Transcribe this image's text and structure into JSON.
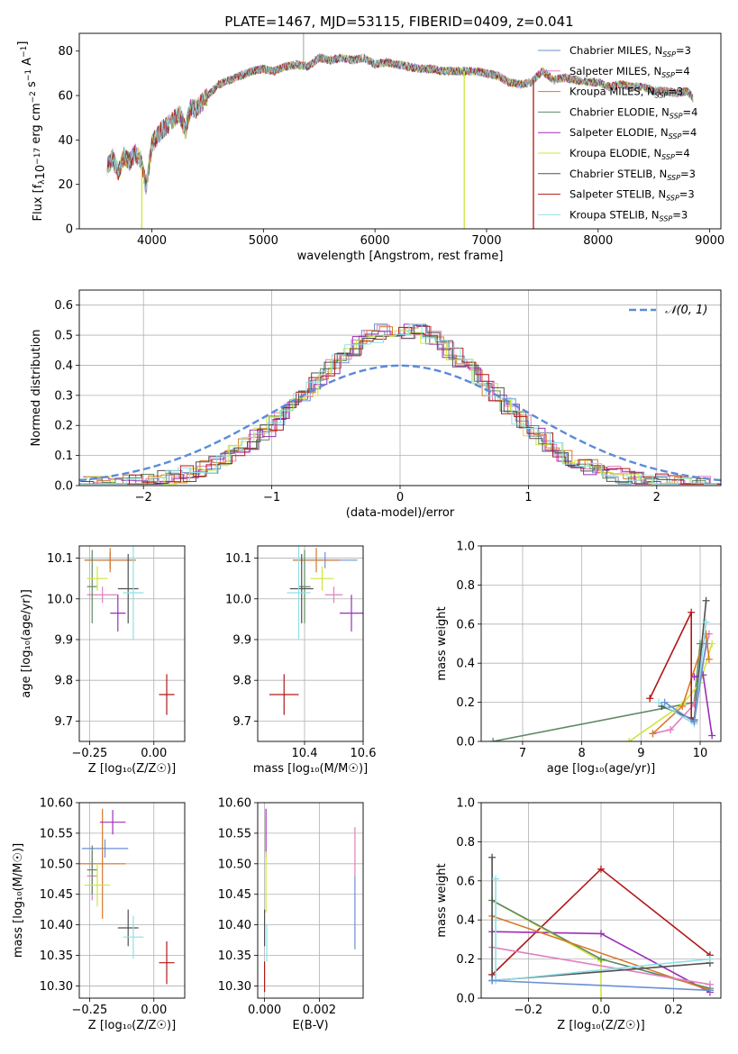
{
  "figure_title": "PLATE=1467, MJD=53115, FIBERID=0409, z=0.041",
  "colors": {
    "Chabrier MILES": "#6b8fd6",
    "Salpeter MILES": "#e07fbf",
    "Kroupa MILES": "#d9782a",
    "Chabrier ELODIE": "#5e8a62",
    "Salpeter ELODIE": "#9b2fb5",
    "Kroupa ELODIE": "#cde63a",
    "Chabrier STELIB": "#505050",
    "Salpeter STELIB": "#b01818",
    "Kroupa STELIB": "#8ee0e6"
  },
  "chart_data": [
    {
      "id": "spectrum",
      "type": "line",
      "xlabel": "wavelength [Angstrom, rest frame]",
      "ylabel": "Flux [f$_\\lambda$10$^{-17}$ erg cm$^{-2}$ s$^{-1}$ A$^{-1}$]",
      "xlim": [
        3350,
        9100
      ],
      "ylim": [
        0,
        88
      ],
      "xticks": [
        4000,
        5000,
        6000,
        7000,
        8000,
        9000
      ],
      "yticks": [
        0,
        20,
        40,
        60,
        80
      ],
      "x": [
        3600,
        3650,
        3700,
        3750,
        3800,
        3850,
        3900,
        3950,
        4000,
        4050,
        4100,
        4150,
        4200,
        4250,
        4300,
        4350,
        4400,
        4500,
        4600,
        4700,
        4800,
        4900,
        5000,
        5100,
        5200,
        5300,
        5400,
        5500,
        5600,
        5700,
        5800,
        5900,
        6000,
        6100,
        6200,
        6300,
        6400,
        6500,
        6600,
        6700,
        6800,
        6900,
        7000,
        7100,
        7200,
        7300,
        7400,
        7500,
        7600,
        7700,
        7800,
        7900,
        8000,
        8100,
        8200,
        8300,
        8400,
        8500,
        8600,
        8700,
        8800,
        8850
      ],
      "y": [
        28,
        32,
        25,
        33,
        30,
        34,
        31,
        19,
        38,
        42,
        45,
        47,
        50,
        52,
        44,
        55,
        54,
        60,
        65,
        67,
        69,
        71,
        72,
        71,
        73,
        74,
        73,
        77,
        76,
        77,
        76,
        77,
        74,
        75,
        74,
        73,
        72,
        72,
        71,
        71,
        71,
        71,
        70,
        69,
        66,
        65,
        66,
        71,
        67,
        68,
        67,
        66,
        66,
        64,
        65,
        64,
        64,
        62,
        62,
        61,
        62,
        59
      ],
      "legend_entries": [
        {
          "name": "Chabrier MILES",
          "nssp": "3"
        },
        {
          "name": "Salpeter MILES",
          "nssp": "4"
        },
        {
          "name": "Kroupa MILES",
          "nssp": "3"
        },
        {
          "name": "Chabrier ELODIE",
          "nssp": "4"
        },
        {
          "name": "Salpeter ELODIE",
          "nssp": "4"
        },
        {
          "name": "Kroupa ELODIE",
          "nssp": "4"
        },
        {
          "name": "Chabrier STELIB",
          "nssp": "3"
        },
        {
          "name": "Salpeter STELIB",
          "nssp": "3"
        },
        {
          "name": "Kroupa STELIB",
          "nssp": "3"
        }
      ],
      "legend_nssp_label": "N",
      "legend_nssp_sub": "SSP",
      "dropouts": [
        {
          "model": "Kroupa ELODIE",
          "x": 3910
        },
        {
          "model": "Kroupa ELODIE",
          "x": 6800
        },
        {
          "model": "Salpeter STELIB",
          "x": 7420
        }
      ],
      "legend": "upper right"
    },
    {
      "id": "residuals",
      "type": "histogram",
      "xlabel": "(data-model)/error",
      "ylabel": "Normed distribution",
      "xlim": [
        -2.5,
        2.5
      ],
      "ylim": [
        0,
        0.65
      ],
      "xticks": [
        -2,
        -1,
        0,
        1,
        2
      ],
      "yticks": [
        0.0,
        0.1,
        0.2,
        0.3,
        0.4,
        0.5,
        0.6
      ],
      "xtick_labels": [
        "−2",
        "−1",
        "0",
        "1",
        "2"
      ],
      "ytick_labels": [
        "0.0",
        "0.1",
        "0.2",
        "0.3",
        "0.4",
        "0.5",
        "0.6"
      ],
      "bin_width": 0.1,
      "bin_start": -2.5,
      "series": [
        {
          "model": "Chabrier MILES",
          "shift": 0.0
        },
        {
          "model": "Salpeter MILES",
          "shift": 0.02
        },
        {
          "model": "Kroupa MILES",
          "shift": 0.04
        },
        {
          "model": "Chabrier ELODIE",
          "shift": -0.02
        },
        {
          "model": "Salpeter ELODIE",
          "shift": 0.03
        },
        {
          "model": "Kroupa ELODIE",
          "shift": -0.04
        },
        {
          "model": "Chabrier STELIB",
          "shift": 0.01
        },
        {
          "model": "Salpeter STELIB",
          "shift": -0.01
        },
        {
          "model": "Kroupa STELIB",
          "shift": -0.03
        }
      ],
      "gaussian_label": "𝒩(0, 1)",
      "gaussian_color": "#5b8bd9",
      "grid": true,
      "legend": "upper right"
    },
    {
      "id": "age_vs_Z",
      "type": "scatter",
      "xlabel": "Z [log₁₀(Z/Z☉)]",
      "ylabel": "age  [log₁₀(age/yr)]",
      "xlim": [
        -0.29,
        0.12
      ],
      "ylim": [
        9.65,
        10.13
      ],
      "xticks": [
        -0.25,
        0.0
      ],
      "xtick_labels": [
        "−0.25",
        "0.00"
      ],
      "yticks": [
        9.7,
        9.8,
        9.9,
        10.0,
        10.1
      ],
      "ytick_labels": [
        "9.7",
        "9.8",
        "9.9",
        "10.0",
        "10.1"
      ],
      "points": [
        {
          "model": "Chabrier MILES",
          "x": -0.17,
          "xerr": 0.1,
          "y": 10.095,
          "yerr": 0.02
        },
        {
          "model": "Salpeter MILES",
          "x": -0.2,
          "xerr": 0.06,
          "y": 10.01,
          "yerr": 0.02
        },
        {
          "model": "Kroupa MILES",
          "x": -0.17,
          "xerr": 0.1,
          "y": 10.095,
          "yerr": 0.03
        },
        {
          "model": "Chabrier ELODIE",
          "x": -0.24,
          "xerr": 0.02,
          "y": 10.03,
          "yerr": 0.09
        },
        {
          "model": "Salpeter ELODIE",
          "x": -0.14,
          "xerr": 0.03,
          "y": 9.965,
          "yerr": 0.045
        },
        {
          "model": "Kroupa ELODIE",
          "x": -0.22,
          "xerr": 0.04,
          "y": 10.05,
          "yerr": 0.03
        },
        {
          "model": "Chabrier STELIB",
          "x": -0.1,
          "xerr": 0.04,
          "y": 10.025,
          "yerr": 0.085
        },
        {
          "model": "Salpeter STELIB",
          "x": 0.05,
          "xerr": 0.03,
          "y": 9.765,
          "yerr": 0.05
        },
        {
          "model": "Kroupa STELIB",
          "x": -0.08,
          "xerr": 0.04,
          "y": 10.015,
          "yerr": 0.115
        }
      ],
      "grid": true
    },
    {
      "id": "age_vs_mass",
      "type": "scatter",
      "xlabel": "mass [log₁₀(M/M☉)]",
      "ylabel": "",
      "xlim": [
        10.24,
        10.6
      ],
      "ylim": [
        9.65,
        10.13
      ],
      "xticks": [
        10.4,
        10.6
      ],
      "xtick_labels": [
        "10.4",
        "10.6"
      ],
      "yticks": [
        9.7,
        9.8,
        9.9,
        10.0,
        10.1
      ],
      "ytick_labels": [
        "9.7",
        "9.8",
        "9.9",
        "10.0",
        "10.1"
      ],
      "points": [
        {
          "model": "Chabrier MILES",
          "x": 10.47,
          "xerr": 0.11,
          "y": 10.095,
          "yerr": 0.02
        },
        {
          "model": "Salpeter MILES",
          "x": 10.5,
          "xerr": 0.03,
          "y": 10.01,
          "yerr": 0.02
        },
        {
          "model": "Kroupa MILES",
          "x": 10.44,
          "xerr": 0.08,
          "y": 10.095,
          "yerr": 0.03
        },
        {
          "model": "Chabrier ELODIE",
          "x": 10.4,
          "xerr": 0.02,
          "y": 10.03,
          "yerr": 0.09
        },
        {
          "model": "Salpeter ELODIE",
          "x": 10.56,
          "xerr": 0.04,
          "y": 9.965,
          "yerr": 0.045
        },
        {
          "model": "Kroupa ELODIE",
          "x": 10.46,
          "xerr": 0.04,
          "y": 10.05,
          "yerr": 0.03
        },
        {
          "model": "Chabrier STELIB",
          "x": 10.39,
          "xerr": 0.04,
          "y": 10.025,
          "yerr": 0.085
        },
        {
          "model": "Salpeter STELIB",
          "x": 10.33,
          "xerr": 0.05,
          "y": 9.765,
          "yerr": 0.05
        },
        {
          "model": "Kroupa STELIB",
          "x": 10.38,
          "xerr": 0.04,
          "y": 10.015,
          "yerr": 0.115
        }
      ],
      "grid": true
    },
    {
      "id": "weight_vs_age",
      "type": "line",
      "xlabel": "age  [log₁₀(age/yr)]",
      "ylabel": "mass weight",
      "xlim": [
        6.3,
        10.35
      ],
      "ylim": [
        0,
        1
      ],
      "xticks": [
        7,
        8,
        9,
        10
      ],
      "xtick_labels": [
        "7",
        "8",
        "9",
        "10"
      ],
      "yticks": [
        0.0,
        0.2,
        0.4,
        0.6,
        0.8,
        1.0
      ],
      "ytick_labels": [
        "0.0",
        "0.2",
        "0.4",
        "0.6",
        "0.8",
        "1.0"
      ],
      "series": [
        {
          "model": "Chabrier ELODIE",
          "x": [
            6.5,
            9.9,
            10.0
          ],
          "y": [
            0.0,
            0.2,
            0.5
          ]
        },
        {
          "model": "Kroupa ELODIE",
          "x": [
            8.8,
            9.7,
            10.0,
            10.2
          ],
          "y": [
            0.0,
            0.19,
            0.3,
            0.5
          ]
        },
        {
          "model": "Salpeter MILES",
          "x": [
            9.2,
            9.5,
            9.9,
            10.15
          ],
          "y": [
            0.04,
            0.06,
            0.19,
            0.55
          ]
        },
        {
          "model": "Kroupa MILES",
          "x": [
            9.2,
            9.7,
            10.1,
            10.15
          ],
          "y": [
            0.04,
            0.18,
            0.55,
            0.42
          ]
        },
        {
          "model": "Salpeter STELIB",
          "x": [
            9.15,
            9.85,
            9.85
          ],
          "y": [
            0.22,
            0.66,
            0.12
          ]
        },
        {
          "model": "Salpeter ELODIE",
          "x": [
            9.9,
            10.05,
            10.2
          ],
          "y": [
            0.33,
            0.34,
            0.03
          ]
        },
        {
          "model": "Chabrier STELIB",
          "x": [
            9.35,
            9.9,
            10.1
          ],
          "y": [
            0.18,
            0.11,
            0.72
          ]
        },
        {
          "model": "Kroupa STELIB",
          "x": [
            9.3,
            9.9,
            10.1
          ],
          "y": [
            0.2,
            0.09,
            0.61
          ]
        },
        {
          "model": "Chabrier MILES",
          "x": [
            9.4,
            9.9,
            10.1
          ],
          "y": [
            0.2,
            0.1,
            0.5
          ]
        }
      ],
      "grid": true
    },
    {
      "id": "mass_vs_Z",
      "type": "scatter",
      "xlabel": "Z [log₁₀(Z/Z☉)]",
      "ylabel": "mass [log₁₀(M/M☉)]",
      "xlim": [
        -0.29,
        0.12
      ],
      "ylim": [
        10.28,
        10.6
      ],
      "xticks": [
        -0.25,
        0.0
      ],
      "xtick_labels": [
        "−0.25",
        "0.00"
      ],
      "yticks": [
        10.3,
        10.35,
        10.4,
        10.45,
        10.5,
        10.55,
        10.6
      ],
      "ytick_labels": [
        "10.30",
        "10.35",
        "10.40",
        "10.45",
        "10.50",
        "10.55",
        "10.60"
      ],
      "points": [
        {
          "model": "Chabrier MILES",
          "x": -0.19,
          "xerr": 0.09,
          "y": 10.525,
          "yerr": 0.015
        },
        {
          "model": "Salpeter MILES",
          "x": -0.24,
          "xerr": 0.02,
          "y": 10.48,
          "yerr": 0.04
        },
        {
          "model": "Kroupa MILES",
          "x": -0.2,
          "xerr": 0.09,
          "y": 10.5,
          "yerr": 0.09
        },
        {
          "model": "Chabrier ELODIE",
          "x": -0.24,
          "xerr": 0.02,
          "y": 10.49,
          "yerr": 0.04
        },
        {
          "model": "Salpeter ELODIE",
          "x": -0.16,
          "xerr": 0.05,
          "y": 10.568,
          "yerr": 0.02
        },
        {
          "model": "Kroupa ELODIE",
          "x": -0.22,
          "xerr": 0.05,
          "y": 10.465,
          "yerr": 0.035
        },
        {
          "model": "Chabrier STELIB",
          "x": -0.1,
          "xerr": 0.04,
          "y": 10.395,
          "yerr": 0.03
        },
        {
          "model": "Salpeter STELIB",
          "x": 0.05,
          "xerr": 0.03,
          "y": 10.338,
          "yerr": 0.035
        },
        {
          "model": "Kroupa STELIB",
          "x": -0.08,
          "xerr": 0.04,
          "y": 10.38,
          "yerr": 0.035
        }
      ],
      "grid": true
    },
    {
      "id": "mass_vs_ebv",
      "type": "scatter",
      "xlabel": "E(B-V)",
      "ylabel": "",
      "xlim": [
        -0.00025,
        0.0036
      ],
      "ylim": [
        10.28,
        10.6
      ],
      "xticks": [
        0.0,
        0.002
      ],
      "xtick_labels": [
        "0.000",
        "0.002"
      ],
      "yticks": [
        10.3,
        10.35,
        10.4,
        10.45,
        10.5,
        10.55,
        10.6
      ],
      "ytick_labels": [
        "10.30",
        "10.35",
        "10.40",
        "10.45",
        "10.50",
        "10.55",
        "10.60"
      ],
      "points": [
        {
          "model": "Salpeter ELODIE",
          "x": 5e-05,
          "xerr": 0.0,
          "y": 10.55,
          "yerr": 0.04
        },
        {
          "model": "Kroupa ELODIE",
          "x": 5e-05,
          "xerr": 0.0,
          "y": 10.47,
          "yerr": 0.05
        },
        {
          "model": "Chabrier STELIB",
          "x": 0.0,
          "xerr": 0.0,
          "y": 10.395,
          "yerr": 0.03
        },
        {
          "model": "Salpeter STELIB",
          "x": 0.0,
          "xerr": 0.0,
          "y": 10.315,
          "yerr": 0.025
        },
        {
          "model": "Kroupa STELIB",
          "x": 8e-05,
          "xerr": 0.0,
          "y": 10.37,
          "yerr": 0.03
        },
        {
          "model": "Salpeter MILES",
          "x": 0.0033,
          "xerr": 0.0,
          "y": 10.52,
          "yerr": 0.04
        },
        {
          "model": "Chabrier MILES",
          "x": 0.0033,
          "xerr": 0.0,
          "y": 10.42,
          "yerr": 0.06
        }
      ],
      "grid": true
    },
    {
      "id": "weight_vs_Z",
      "type": "line",
      "xlabel": "Z [log₁₀(Z/Z☉)]",
      "ylabel": "mass weight",
      "xlim": [
        -0.33,
        0.33
      ],
      "ylim": [
        0,
        1
      ],
      "xticks": [
        -0.2,
        0.0,
        0.2
      ],
      "xtick_labels": [
        "−0.2",
        "0.0",
        "0.2"
      ],
      "yticks": [
        0.0,
        0.2,
        0.4,
        0.6,
        0.8,
        1.0
      ],
      "ytick_labels": [
        "0.0",
        "0.2",
        "0.4",
        "0.6",
        "0.8",
        "1.0"
      ],
      "series": [
        {
          "model": "Salpeter STELIB",
          "x": [
            -0.3,
            0.0,
            0.3
          ],
          "y": [
            0.12,
            0.66,
            0.22
          ]
        },
        {
          "model": "Salpeter ELODIE",
          "x": [
            -0.3,
            0.0,
            0.3
          ],
          "y": [
            0.34,
            0.33,
            0.03
          ]
        },
        {
          "model": "Kroupa ELODIE",
          "x": [
            -0.3,
            0.0,
            0.0
          ],
          "y": [
            0.5,
            0.19,
            0.0
          ]
        },
        {
          "model": "Chabrier ELODIE",
          "x": [
            -0.3,
            0.0,
            0.3
          ],
          "y": [
            0.5,
            0.2,
            0.05
          ]
        },
        {
          "model": "Kroupa MILES",
          "x": [
            -0.3,
            0.3
          ],
          "y": [
            0.42,
            0.04
          ]
        },
        {
          "model": "Salpeter MILES",
          "x": [
            -0.3,
            0.3
          ],
          "y": [
            0.26,
            0.07
          ]
        },
        {
          "model": "Chabrier STELIB",
          "x": [
            -0.3,
            -0.3,
            0.3
          ],
          "y": [
            0.72,
            0.09,
            0.18
          ]
        },
        {
          "model": "Kroupa STELIB",
          "x": [
            -0.29,
            -0.29,
            0.3
          ],
          "y": [
            0.61,
            0.09,
            0.2
          ]
        },
        {
          "model": "Chabrier MILES",
          "x": [
            -0.3,
            0.3
          ],
          "y": [
            0.09,
            0.04
          ]
        }
      ],
      "grid": true
    }
  ]
}
